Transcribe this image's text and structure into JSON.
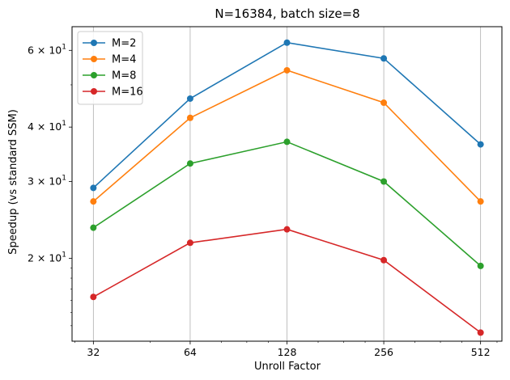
{
  "chart_data": {
    "type": "line",
    "title": "N=16384, batch size=8",
    "xlabel": "Unroll Factor",
    "ylabel": "Speedup (vs standard SSM)",
    "x_scale": "log2",
    "y_scale": "log10",
    "x": [
      32,
      64,
      128,
      256,
      512
    ],
    "x_tick_labels": [
      "32",
      "64",
      "128",
      "256",
      "512"
    ],
    "y_ticks": [
      {
        "value": 20,
        "mantissa": "2",
        "base": "10",
        "exp": "1"
      },
      {
        "value": 30,
        "mantissa": "3",
        "base": "10",
        "exp": "1"
      },
      {
        "value": 40,
        "mantissa": "4",
        "base": "10",
        "exp": "1"
      },
      {
        "value": 60,
        "mantissa": "6",
        "base": "10",
        "exp": "1"
      }
    ],
    "ylim": [
      12.9,
      68
    ],
    "grid": "x-major",
    "legend_position": "top-left",
    "series": [
      {
        "name": "M=2",
        "color": "#1f77b4",
        "values": [
          29.0,
          46.5,
          62.5,
          57.5,
          36.5
        ]
      },
      {
        "name": "M=4",
        "color": "#ff7f0e",
        "values": [
          27.0,
          42.0,
          54.0,
          45.5,
          27.0
        ]
      },
      {
        "name": "M=8",
        "color": "#2ca02c",
        "values": [
          23.5,
          33.0,
          37.0,
          30.0,
          19.2
        ]
      },
      {
        "name": "M=16",
        "color": "#d62728",
        "values": [
          16.3,
          21.7,
          23.3,
          19.8,
          13.5
        ]
      }
    ]
  }
}
